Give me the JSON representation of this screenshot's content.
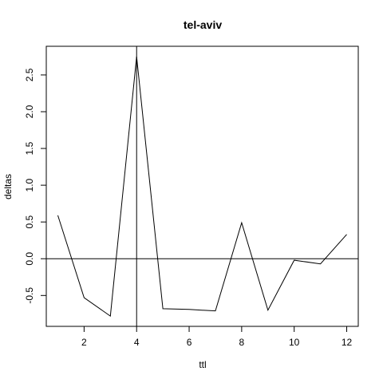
{
  "chart_data": {
    "type": "line",
    "title": "tel-aviv",
    "xlabel": "ttl",
    "ylabel": "deltas",
    "x": [
      1,
      2,
      3,
      4,
      5,
      6,
      7,
      8,
      9,
      10,
      11,
      12
    ],
    "series": [
      {
        "values": [
          0.59,
          -0.53,
          -0.78,
          2.75,
          -0.68,
          -0.69,
          -0.71,
          0.49,
          -0.7,
          -0.02,
          -0.07,
          0.33
        ]
      }
    ],
    "xlim": [
      0.56,
      12.44
    ],
    "ylim": [
      -0.92,
      2.89
    ],
    "xticks": [
      2,
      4,
      6,
      8,
      10,
      12
    ],
    "yticks": [
      -0.5,
      0.0,
      0.5,
      1.0,
      1.5,
      2.0,
      2.5
    ],
    "x_tick_labels": [
      "2",
      "4",
      "6",
      "8",
      "10",
      "12"
    ],
    "y_tick_labels": [
      "-0.5",
      "0.0",
      "0.5",
      "1.0",
      "1.5",
      "2.0",
      "2.5"
    ],
    "reference_lines": {
      "horizontal": 0,
      "vertical": 4
    },
    "grid": false,
    "line_color": "#000000"
  }
}
